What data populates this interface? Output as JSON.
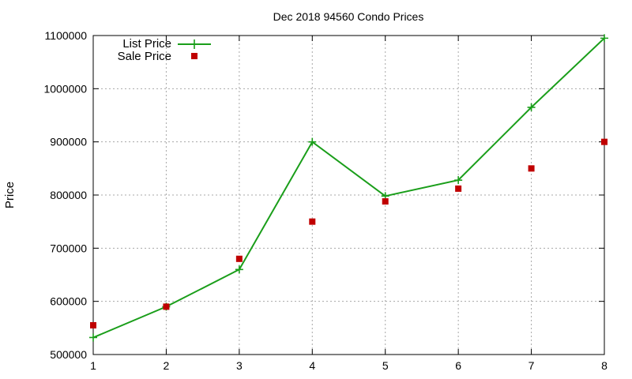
{
  "chart_data": {
    "type": "line",
    "title": "Dec 2018 94560 Condo Prices",
    "xlabel": "",
    "ylabel": "Price",
    "xlim": [
      1,
      8
    ],
    "ylim": [
      500000,
      1100000
    ],
    "xticks": [
      1,
      2,
      3,
      4,
      5,
      6,
      7,
      8
    ],
    "yticks": [
      500000,
      600000,
      700000,
      800000,
      900000,
      1000000,
      1100000
    ],
    "grid": true,
    "legend_position": "top-left",
    "series": [
      {
        "name": "List Price",
        "style": "line-with-plus-markers",
        "color": "#1a9e1a",
        "x": [
          1,
          2,
          3,
          4,
          5,
          6,
          7,
          8
        ],
        "y": [
          532000,
          590000,
          660000,
          900000,
          798000,
          828000,
          965000,
          1095000
        ]
      },
      {
        "name": "Sale Price",
        "style": "square-markers",
        "color": "#c00000",
        "x": [
          1,
          2,
          3,
          4,
          5,
          6,
          7,
          8
        ],
        "y": [
          555000,
          590000,
          680000,
          750000,
          788000,
          812000,
          850000,
          900000
        ]
      }
    ]
  }
}
